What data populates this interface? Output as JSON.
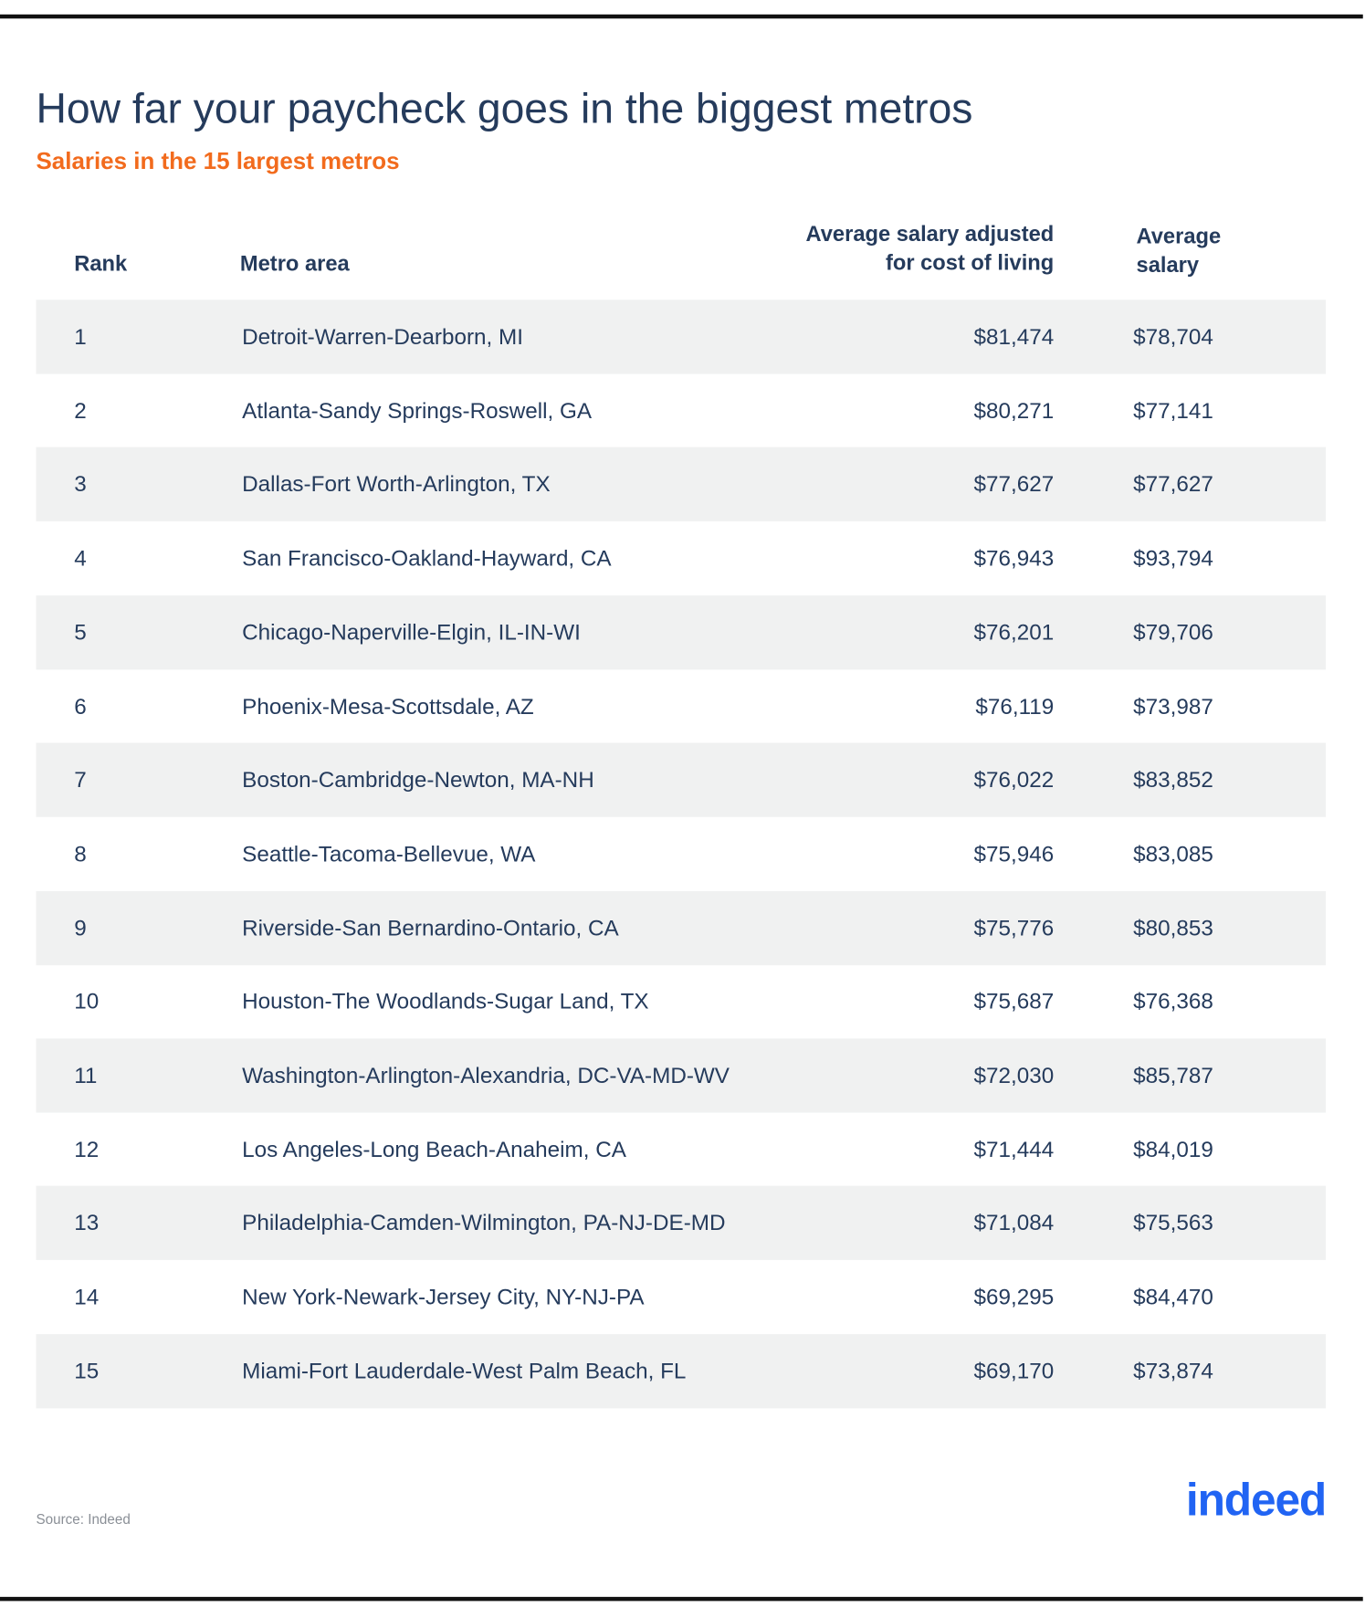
{
  "header": {
    "title": "How far your paycheck goes in the biggest metros",
    "subtitle": "Salaries in the 15 largest metros"
  },
  "table": {
    "columns": [
      "Rank",
      "Metro area",
      "Average salary adjusted\nfor cost of living",
      "Average\nsalary"
    ],
    "rows": [
      [
        "1",
        "Detroit-Warren-Dearborn, MI",
        "$81,474",
        "$78,704"
      ],
      [
        "2",
        "Atlanta-Sandy Springs-Roswell, GA",
        "$80,271",
        "$77,141"
      ],
      [
        "3",
        "Dallas-Fort Worth-Arlington, TX",
        "$77,627",
        "$77,627"
      ],
      [
        "4",
        "San Francisco-Oakland-Hayward, CA",
        "$76,943",
        "$93,794"
      ],
      [
        "5",
        "Chicago-Naperville-Elgin, IL-IN-WI",
        "$76,201",
        "$79,706"
      ],
      [
        "6",
        "Phoenix-Mesa-Scottsdale, AZ",
        "$76,119",
        "$73,987"
      ],
      [
        "7",
        "Boston-Cambridge-Newton, MA-NH",
        "$76,022",
        "$83,852"
      ],
      [
        "8",
        "Seattle-Tacoma-Bellevue, WA",
        "$75,946",
        "$83,085"
      ],
      [
        "9",
        "Riverside-San Bernardino-Ontario, CA",
        "$75,776",
        "$80,853"
      ],
      [
        "10",
        "Houston-The Woodlands-Sugar Land, TX",
        "$75,687",
        "$76,368"
      ],
      [
        "11",
        "Washington-Arlington-Alexandria, DC-VA-MD-WV",
        "$72,030",
        "$85,787"
      ],
      [
        "12",
        "Los Angeles-Long Beach-Anaheim, CA",
        "$71,444",
        "$84,019"
      ],
      [
        "13",
        "Philadelphia-Camden-Wilmington, PA-NJ-DE-MD",
        "$71,084",
        "$75,563"
      ],
      [
        "14",
        "New York-Newark-Jersey City, NY-NJ-PA",
        "$69,295",
        "$84,470"
      ],
      [
        "15",
        "Miami-Fort Lauderdale-West Palm Beach, FL",
        "$69,170",
        "$73,874"
      ]
    ]
  },
  "footer": {
    "source": "Source: Indeed",
    "logo": "indeed"
  }
}
